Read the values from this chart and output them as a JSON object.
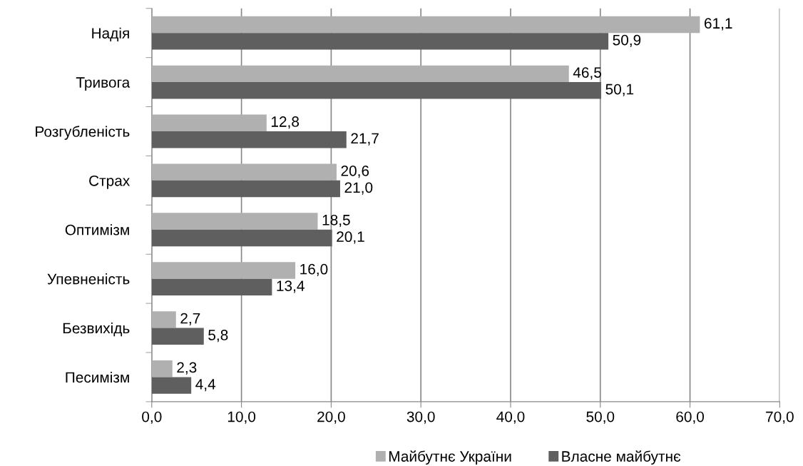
{
  "chart_data": {
    "type": "bar",
    "orientation": "horizontal",
    "categories": [
      "Надія",
      "Тривога",
      "Розгубленість",
      "Страх",
      "Оптимізм",
      "Упевненість",
      "Безвихідь",
      "Песимізм"
    ],
    "series": [
      {
        "name": "Майбутнє України",
        "color": "#b0b0b0",
        "values": [
          61.1,
          46.5,
          12.8,
          20.6,
          18.5,
          16.0,
          2.7,
          2.3
        ],
        "value_labels": [
          "61,1",
          "46,5",
          "12,8",
          "20,6",
          "18,5",
          "16,0",
          "2,7",
          "2,3"
        ]
      },
      {
        "name": "Власне майбутнє",
        "color": "#5f5f5f",
        "values": [
          50.9,
          50.1,
          21.7,
          21.0,
          20.1,
          13.4,
          5.8,
          4.4
        ],
        "value_labels": [
          "50,9",
          "50,1",
          "21,7",
          "21,0",
          "20,1",
          "13,4",
          "5,8",
          "4,4"
        ]
      }
    ],
    "xlim": [
      0,
      70
    ],
    "xticks": [
      {
        "value": 0,
        "label": "0,0"
      },
      {
        "value": 10,
        "label": "10,0"
      },
      {
        "value": 20,
        "label": "20,0"
      },
      {
        "value": 30,
        "label": "30,0"
      },
      {
        "value": 40,
        "label": "40,0"
      },
      {
        "value": 50,
        "label": "50,0"
      },
      {
        "value": 60,
        "label": "60,0"
      },
      {
        "value": 70,
        "label": "70,0"
      }
    ],
    "grid": "x",
    "legend": "bottom"
  }
}
